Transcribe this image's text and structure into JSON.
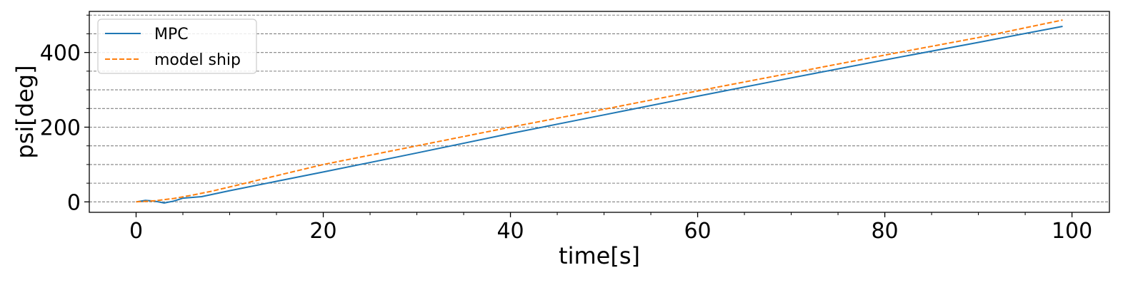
{
  "chart_data": {
    "type": "line",
    "title": "",
    "xlabel": "time[s]",
    "ylabel": "psi[deg]",
    "xlim": [
      -5,
      104
    ],
    "ylim": [
      -28,
      510
    ],
    "x_ticks": [
      0,
      20,
      40,
      60,
      80,
      100
    ],
    "x_tick_labels": [
      "0",
      "20",
      "40",
      "60",
      "80",
      "100"
    ],
    "x_minor_ticks": [
      5,
      10,
      15,
      25,
      30,
      35,
      45,
      50,
      55,
      65,
      70,
      75,
      85,
      90,
      95
    ],
    "y_ticks": [
      0,
      200,
      400
    ],
    "y_tick_labels": [
      "0",
      "200",
      "400"
    ],
    "y_minor_ticks": [
      50,
      100,
      150,
      250,
      300,
      350,
      450,
      500
    ],
    "grid": "horizontal dashed at major and minor y ticks",
    "legend_position": "top-left",
    "series": [
      {
        "name": "MPC",
        "color": "#1f77b4",
        "style": "solid",
        "x": [
          0,
          1,
          2,
          3,
          4,
          5,
          7,
          10,
          20,
          30,
          40,
          50,
          60,
          70,
          80,
          90,
          99
        ],
        "y": [
          0,
          4,
          2,
          -3,
          2,
          10,
          14,
          30,
          80,
          131,
          183,
          233,
          283,
          332,
          380,
          427,
          470
        ]
      },
      {
        "name": "model ship",
        "color": "#ff7f0e",
        "style": "dashed",
        "x": [
          0,
          2,
          4,
          6,
          8,
          10,
          15,
          20,
          30,
          40,
          50,
          60,
          70,
          80,
          90,
          99
        ],
        "y": [
          0,
          3,
          9,
          18,
          28,
          40,
          70,
          100,
          150,
          200,
          248,
          297,
          345,
          393,
          440,
          487
        ]
      }
    ]
  }
}
